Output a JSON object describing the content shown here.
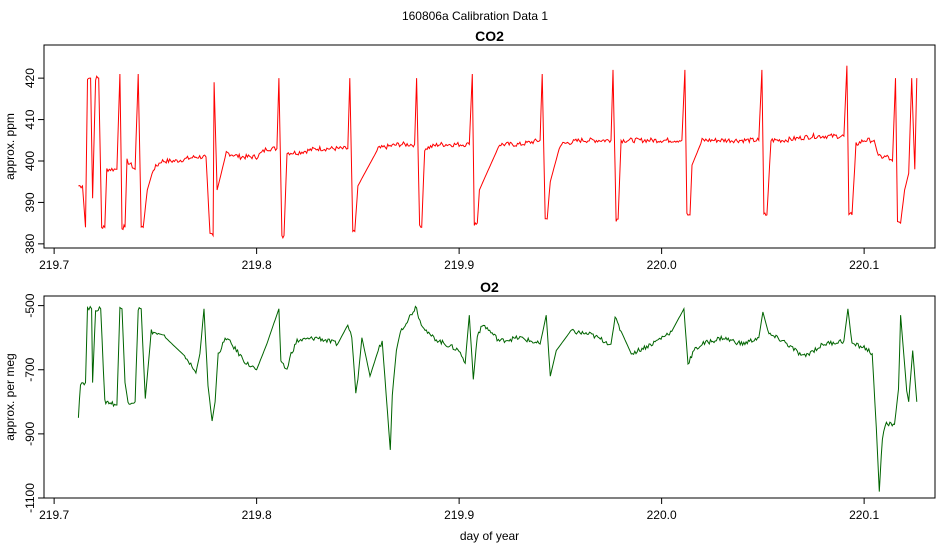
{
  "figure_title": "160806a   Calibration Data 1",
  "chart_data": [
    {
      "type": "line",
      "title": "CO2",
      "xlabel": "",
      "ylabel": "approx. ppm",
      "color": "#ff0000",
      "xlim": [
        219.695,
        220.135
      ],
      "ylim": [
        379,
        428
      ],
      "xticks": [
        219.7,
        219.8,
        219.9,
        220.0,
        220.1
      ],
      "xtick_labels": [
        "219.7",
        "219.8",
        "219.9",
        "220.0",
        "220.1"
      ],
      "yticks": [
        380,
        390,
        400,
        410,
        420
      ],
      "ytick_labels": [
        "380",
        "390",
        "400",
        "410",
        "420"
      ],
      "grid": false,
      "series": [
        {
          "x": [
            219.712,
            219.714,
            219.7155,
            219.7165,
            219.718,
            219.719,
            219.7205,
            219.722,
            219.7235,
            219.725,
            219.726,
            219.731,
            219.7325,
            219.7335,
            219.735,
            219.736,
            219.738,
            219.74,
            219.7415,
            219.743,
            219.744,
            219.746,
            219.749,
            219.753,
            219.76,
            219.77,
            219.775,
            219.777,
            219.7785,
            219.779,
            219.7805,
            219.785,
            219.792,
            219.8,
            219.805,
            219.81,
            219.811,
            219.8125,
            219.8135,
            219.815,
            219.82,
            219.83,
            219.84,
            219.845,
            219.846,
            219.8475,
            219.8485,
            219.85,
            219.86,
            219.87,
            219.878,
            219.879,
            219.8805,
            219.8815,
            219.883,
            219.89,
            219.9,
            219.905,
            219.9065,
            219.9075,
            219.909,
            219.91,
            219.92,
            219.93,
            219.94,
            219.941,
            219.9425,
            219.9435,
            219.945,
            219.95,
            219.96,
            219.975,
            219.976,
            219.9775,
            219.9785,
            219.98,
            219.99,
            220.0,
            220.01,
            220.0115,
            220.0125,
            220.014,
            220.015,
            220.02,
            220.035,
            220.048,
            220.0495,
            220.0505,
            220.052,
            220.054,
            220.06,
            220.075,
            220.085,
            220.09,
            220.0915,
            220.0925,
            220.094,
            220.096,
            220.1,
            220.105,
            220.107,
            220.112,
            220.113,
            220.114,
            220.1155,
            220.1165,
            220.118,
            220.12,
            220.122,
            220.1235,
            220.125,
            220.126
          ],
          "y": [
            394,
            394,
            384,
            420,
            420,
            391,
            420,
            420,
            384,
            384,
            398,
            398,
            421,
            384,
            384,
            400,
            399,
            398,
            421,
            384,
            384,
            393,
            398,
            400,
            400,
            401,
            401,
            382,
            382,
            419,
            393,
            402,
            401,
            401,
            403,
            403,
            420,
            382,
            382,
            402,
            402,
            403,
            403,
            403,
            420,
            383,
            383,
            394,
            403,
            404,
            404,
            420,
            384,
            384,
            403,
            404,
            404,
            404,
            421,
            385,
            385,
            393,
            404,
            404,
            405,
            421,
            386,
            386,
            395,
            404,
            405,
            405,
            422,
            386,
            386,
            405,
            405,
            405,
            405,
            422,
            387,
            387,
            399,
            405,
            405,
            405,
            422,
            387,
            387,
            405,
            405,
            406,
            406,
            406,
            423,
            387,
            387,
            404,
            405,
            405,
            401,
            401,
            400,
            400,
            420,
            385,
            385,
            393,
            397,
            420,
            398,
            420
          ]
        }
      ]
    },
    {
      "type": "line",
      "title": "O2",
      "xlabel": "day of year",
      "ylabel": "approx. per meg",
      "color": "#006400",
      "xlim": [
        219.695,
        220.135
      ],
      "ylim": [
        -1100,
        -470
      ],
      "xticks": [
        219.7,
        219.8,
        219.9,
        220.0,
        220.1
      ],
      "xtick_labels": [
        "219.7",
        "219.8",
        "219.9",
        "220.0",
        "220.1"
      ],
      "yticks": [
        -1100,
        -900,
        -700,
        -500
      ],
      "ytick_labels": [
        "-1100",
        "-900",
        "-700",
        "-500"
      ],
      "grid": false,
      "series": [
        {
          "x": [
            219.712,
            219.713,
            219.7155,
            219.7165,
            219.7185,
            219.719,
            219.7205,
            219.723,
            219.725,
            219.7265,
            219.731,
            219.7325,
            219.7335,
            219.735,
            219.7365,
            219.74,
            219.7415,
            219.743,
            219.745,
            219.748,
            219.755,
            219.765,
            219.77,
            219.772,
            219.774,
            219.776,
            219.778,
            219.7795,
            219.781,
            219.785,
            219.79,
            219.795,
            219.8,
            219.805,
            219.811,
            219.812,
            219.815,
            219.817,
            219.82,
            219.83,
            219.84,
            219.845,
            219.847,
            219.849,
            219.85,
            219.852,
            219.856,
            219.86,
            219.862,
            219.864,
            219.866,
            219.867,
            219.869,
            219.871,
            219.875,
            219.879,
            219.88,
            219.882,
            219.885,
            219.89,
            219.9,
            219.903,
            219.905,
            219.907,
            219.909,
            219.912,
            219.92,
            219.93,
            219.94,
            219.943,
            219.945,
            219.948,
            219.955,
            219.965,
            219.975,
            219.977,
            219.98,
            219.985,
            219.995,
            220.005,
            220.011,
            220.013,
            220.016,
            220.02,
            220.03,
            220.04,
            220.048,
            220.05,
            220.053,
            220.06,
            220.07,
            220.08,
            220.09,
            220.092,
            220.094,
            220.1,
            220.104,
            220.106,
            220.1075,
            220.109,
            220.111,
            220.115,
            220.117,
            220.118,
            220.121,
            220.122,
            220.124,
            220.126
          ],
          "y": [
            -850,
            -740,
            -740,
            -510,
            -510,
            -740,
            -510,
            -510,
            -800,
            -800,
            -810,
            -510,
            -510,
            -740,
            -800,
            -800,
            -510,
            -510,
            -790,
            -580,
            -600,
            -660,
            -710,
            -650,
            -510,
            -750,
            -860,
            -800,
            -650,
            -600,
            -640,
            -680,
            -700,
            -620,
            -510,
            -680,
            -700,
            -650,
            -610,
            -600,
            -620,
            -560,
            -600,
            -770,
            -730,
            -600,
            -720,
            -640,
            -610,
            -780,
            -950,
            -780,
            -640,
            -580,
            -540,
            -500,
            -540,
            -560,
            -590,
            -610,
            -640,
            -680,
            -530,
            -730,
            -590,
            -560,
            -610,
            -600,
            -620,
            -530,
            -720,
            -640,
            -580,
            -590,
            -620,
            -540,
            -580,
            -650,
            -620,
            -580,
            -510,
            -680,
            -640,
            -620,
            -600,
            -620,
            -600,
            -520,
            -590,
            -610,
            -660,
            -620,
            -610,
            -510,
            -620,
            -630,
            -650,
            -880,
            -1080,
            -910,
            -870,
            -870,
            -760,
            -530,
            -760,
            -800,
            -640,
            -800
          ]
        }
      ]
    }
  ]
}
